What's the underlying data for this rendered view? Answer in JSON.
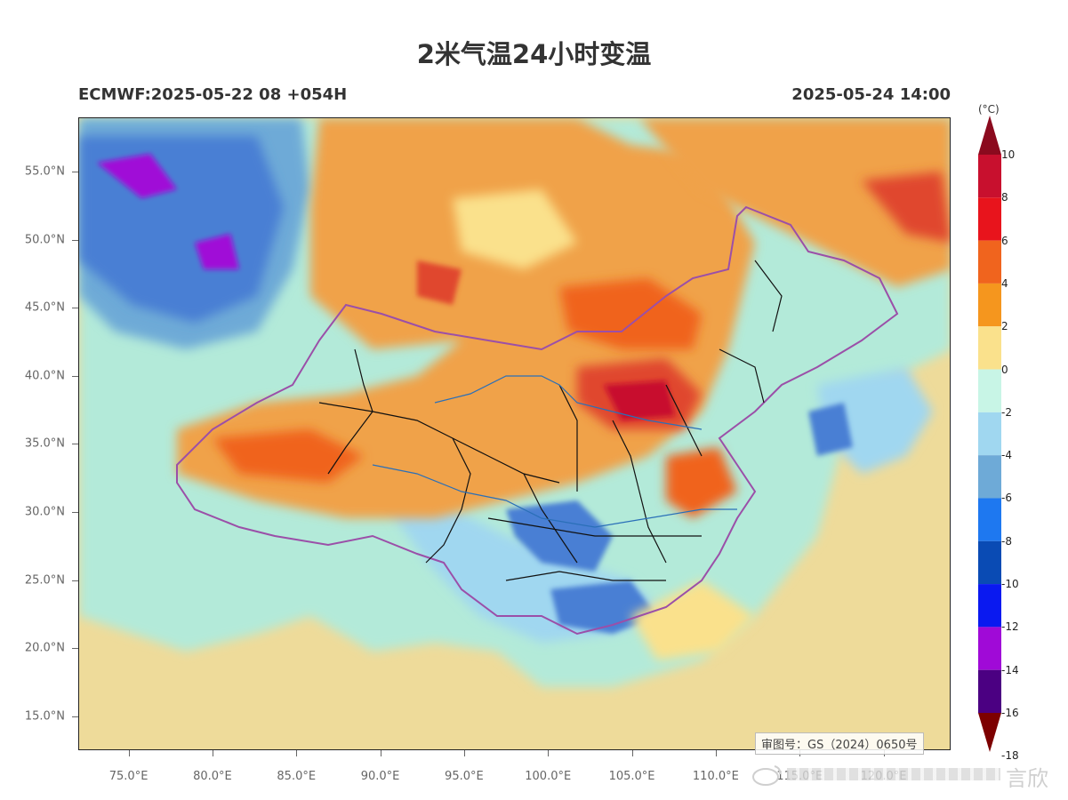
{
  "header": {
    "title": "2米气温24小时变温",
    "model_run": "ECMWF:2025-05-22 08 +054H",
    "valid_time": "2025-05-24 14:00"
  },
  "map": {
    "extent": {
      "lon": [
        72,
        124
      ],
      "lat": [
        12.5,
        59
      ]
    },
    "lat_labels": [
      {
        "value": 55,
        "text": "55.0°N"
      },
      {
        "value": 50,
        "text": "50.0°N"
      },
      {
        "value": 45,
        "text": "45.0°N"
      },
      {
        "value": 40,
        "text": "40.0°N"
      },
      {
        "value": 35,
        "text": "35.0°N"
      },
      {
        "value": 30,
        "text": "30.0°N"
      },
      {
        "value": 25,
        "text": "25.0°N"
      },
      {
        "value": 20,
        "text": "20.0°N"
      },
      {
        "value": 15,
        "text": "15.0°N"
      }
    ],
    "lon_labels": [
      {
        "value": 75,
        "text": "75.0°E"
      },
      {
        "value": 80,
        "text": "80.0°E"
      },
      {
        "value": 85,
        "text": "85.0°E"
      },
      {
        "value": 90,
        "text": "90.0°E"
      },
      {
        "value": 95,
        "text": "95.0°E"
      },
      {
        "value": 100,
        "text": "100.0°E"
      },
      {
        "value": 105,
        "text": "105.0°E"
      },
      {
        "value": 110,
        "text": "110.0°E"
      },
      {
        "value": 115,
        "text": "115.0°E"
      },
      {
        "value": 120,
        "text": "120.0°E"
      }
    ],
    "approval_number": "审图号：GS（2024）0650号",
    "colors": {
      "ocean": "#eedb9a",
      "cool_land": "#b3ead9",
      "warm": "#f0a24a",
      "hot": "#e0462e",
      "cold": "#4a7fd4",
      "border_country": "#9b4fa8",
      "border_province": "#111111",
      "river": "#2a6fb8"
    }
  },
  "colorbar": {
    "unit": "(°C)",
    "levels": [
      "10",
      "8",
      "6",
      "4",
      "2",
      "0",
      "-2",
      "-4",
      "-6",
      "-8",
      "-10",
      "-12",
      "-14",
      "-16",
      "-18"
    ],
    "colors": [
      "#8b0a1e",
      "#c8102e",
      "#e8141c",
      "#f0641e",
      "#f5961e",
      "#fae18c",
      "#c8f5e6",
      "#a0d7f0",
      "#6eaad7",
      "#1e78f0",
      "#0a4bb4",
      "#0a19f0",
      "#a00ad7",
      "#4b0082",
      "#7d0000"
    ]
  },
  "watermark": {
    "text": "言欣"
  }
}
